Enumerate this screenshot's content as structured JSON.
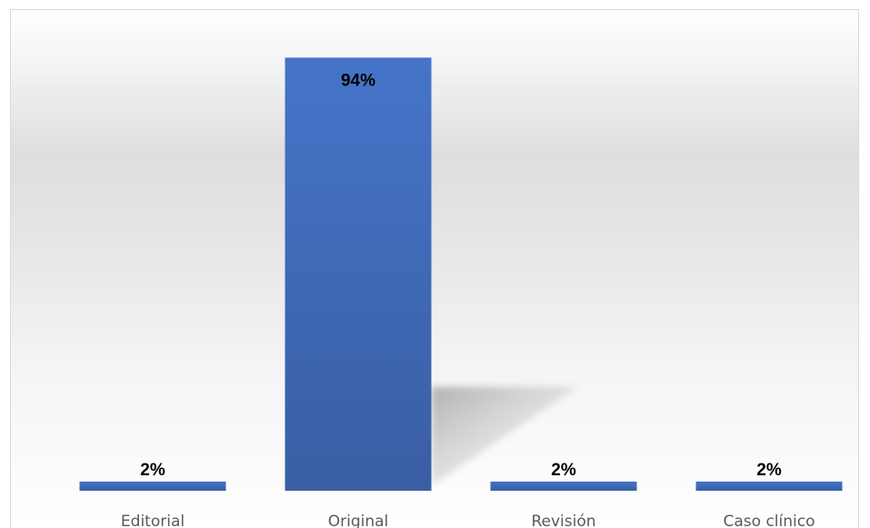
{
  "chart_data": {
    "type": "bar",
    "categories": [
      "Editorial",
      "Original",
      "Revisión",
      "Caso clínico"
    ],
    "values": [
      2,
      94,
      2,
      2
    ],
    "data_labels": [
      "2%",
      "94%",
      "2%",
      "2%"
    ],
    "ylim": [
      0,
      100
    ],
    "grid": false,
    "legend": "none"
  },
  "colors": {
    "bar": "#4472c4",
    "bar_dark": "#3a5fa5",
    "label": "#000000",
    "axis_text": "#595959"
  }
}
